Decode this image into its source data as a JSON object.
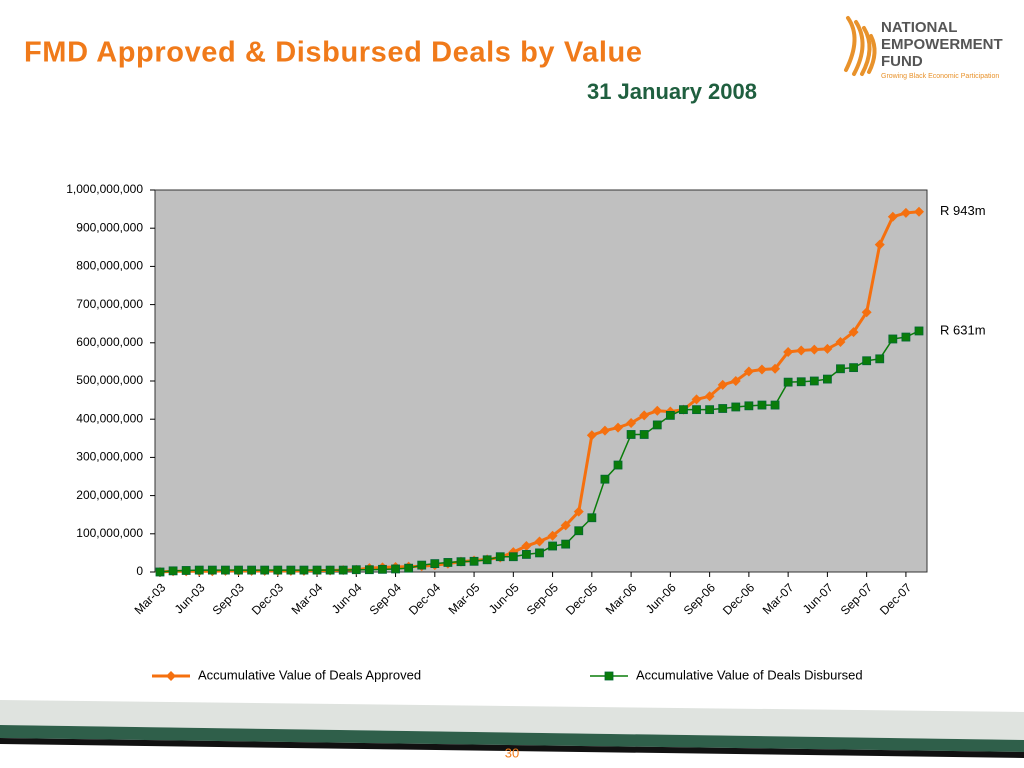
{
  "chart_data": {
    "type": "line",
    "title": "FMD Approved & Disbursed Deals by Value",
    "subtitle": "31 January 2008",
    "categories": [
      "Mar-03",
      null,
      null,
      "Jun-03",
      null,
      null,
      "Sep-03",
      null,
      null,
      "Dec-03",
      null,
      null,
      "Mar-04",
      null,
      null,
      "Jun-04",
      null,
      null,
      "Sep-04",
      null,
      null,
      "Dec-04",
      null,
      null,
      "Mar-05",
      null,
      null,
      "Jun-05",
      null,
      null,
      "Sep-05",
      null,
      null,
      "Dec-05",
      null,
      null,
      "Mar-06",
      null,
      null,
      "Jun-06",
      null,
      null,
      "Sep-06",
      null,
      null,
      "Dec-06",
      null,
      null,
      "Mar-07",
      null,
      null,
      "Jun-07",
      null,
      null,
      "Sep-07",
      null,
      null,
      "Dec-07",
      null
    ],
    "series": [
      {
        "name": "Accumulative Value of Deals Approved",
        "color": "#f5700f",
        "marker": "diamond",
        "end_label": "R 943m",
        "values": [
          0,
          2000000,
          2000000,
          2000000,
          2000000,
          3000000,
          3000000,
          3000000,
          3000000,
          3000000,
          3000000,
          3000000,
          4000000,
          4000000,
          5000000,
          6000000,
          10000000,
          12000000,
          13000000,
          14000000,
          15000000,
          18000000,
          22000000,
          27000000,
          30000000,
          33000000,
          38000000,
          52000000,
          68000000,
          80000000,
          95000000,
          122000000,
          158000000,
          358000000,
          370000000,
          378000000,
          390000000,
          410000000,
          422000000,
          420000000,
          425000000,
          452000000,
          460000000,
          490000000,
          500000000,
          525000000,
          530000000,
          532000000,
          576000000,
          580000000,
          582000000,
          584000000,
          602000000,
          628000000,
          680000000,
          857000000,
          930000000,
          940000000,
          943000000
        ]
      },
      {
        "name": "Accumulative Value of Deals Disbursed",
        "color": "#0a7d0a",
        "marker": "square",
        "end_label": "R 631m",
        "values": [
          0,
          3000000,
          4000000,
          5000000,
          5000000,
          5000000,
          5000000,
          5000000,
          5000000,
          5000000,
          5000000,
          5000000,
          5000000,
          5000000,
          5000000,
          6000000,
          6000000,
          7000000,
          8000000,
          10000000,
          18000000,
          22000000,
          25000000,
          27000000,
          28000000,
          32000000,
          40000000,
          40000000,
          46000000,
          50000000,
          68000000,
          73000000,
          108000000,
          142000000,
          243000000,
          280000000,
          360000000,
          360000000,
          385000000,
          410000000,
          425000000,
          425000000,
          425000000,
          428000000,
          432000000,
          435000000,
          437000000,
          437000000,
          497000000,
          498000000,
          500000000,
          505000000,
          532000000,
          535000000,
          553000000,
          558000000,
          610000000,
          615000000,
          631000000
        ]
      }
    ],
    "ylim": [
      0,
      1000000000
    ],
    "yticks": [
      0,
      {
        "value": 100000000,
        "label": "100,000,000"
      },
      {
        "value": 200000000,
        "label": "200,000,000"
      },
      {
        "value": 300000000,
        "label": "300,000,000"
      },
      {
        "value": 400000000,
        "label": "400,000,000"
      },
      {
        "value": 500000000,
        "label": "500,000,000"
      },
      {
        "value": 600000000,
        "label": "600,000,000"
      },
      {
        "value": 700000000,
        "label": "700,000,000"
      },
      {
        "value": 800000000,
        "label": "800,000,000"
      },
      {
        "value": 900000000,
        "label": "900,000,000"
      },
      {
        "value": 1000000000,
        "label": "1,000,000,000"
      }
    ],
    "grid": false,
    "legend": "bottom",
    "plot_color": "#c0c0c0"
  },
  "logo": {
    "lines": [
      "NATIONAL",
      "EMPOWERMENT",
      "FUND"
    ],
    "tagline": "Growing Black Economic Participation"
  },
  "page_number": "30"
}
